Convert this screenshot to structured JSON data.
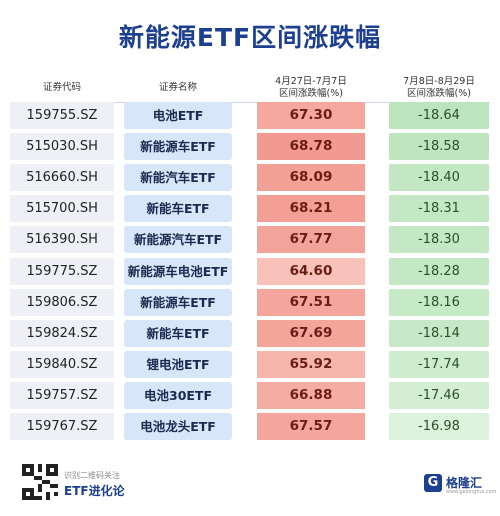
{
  "chart_data": {
    "type": "table",
    "title": "新能源ETF区间涨跌幅",
    "columns": [
      "证券代码",
      "证券名称",
      "4月27日-7月7日区间涨跌幅(%)",
      "7月8日-8月29日区间涨跌幅(%)"
    ],
    "header": {
      "code": "证券代码",
      "name": "证券名称",
      "period1_line1": "4月27日-7月7日",
      "period1_line2": "区间涨跌幅(%)",
      "period2_line1": "7月8日-8月29日",
      "period2_line2": "区间涨跌幅(%)"
    },
    "rows": [
      {
        "code": "159755.SZ",
        "name": "电池ETF",
        "p1": "67.30",
        "p2": "-18.64"
      },
      {
        "code": "515030.SH",
        "name": "新能源车ETF",
        "p1": "68.78",
        "p2": "-18.58"
      },
      {
        "code": "516660.SH",
        "name": "新能汽车ETF",
        "p1": "68.09",
        "p2": "-18.40"
      },
      {
        "code": "515700.SH",
        "name": "新能车ETF",
        "p1": "68.21",
        "p2": "-18.31"
      },
      {
        "code": "516390.SH",
        "name": "新能源汽车ETF",
        "p1": "67.77",
        "p2": "-18.30"
      },
      {
        "code": "159775.SZ",
        "name": "新能源车电池ETF",
        "p1": "64.60",
        "p2": "-18.28"
      },
      {
        "code": "159806.SZ",
        "name": "新能源车ETF",
        "p1": "67.51",
        "p2": "-18.16"
      },
      {
        "code": "159824.SZ",
        "name": "新能车ETF",
        "p1": "67.69",
        "p2": "-18.14"
      },
      {
        "code": "159840.SZ",
        "name": "锂电池ETF",
        "p1": "65.92",
        "p2": "-17.74"
      },
      {
        "code": "159757.SZ",
        "name": "电池30ETF",
        "p1": "66.88",
        "p2": "-17.46"
      },
      {
        "code": "159767.SZ",
        "name": "电池龙头ETF",
        "p1": "67.57",
        "p2": "-16.98"
      }
    ]
  },
  "footer": {
    "qr_hint": "识别二维码关注",
    "brand": "ETF进化论",
    "logo_mark": "G",
    "logo_name": "格隆汇",
    "logo_site": "www.gelonghui.com"
  },
  "colors": {
    "title": "#1d3f8f",
    "up_strong": "#f29a8f",
    "up_light": "#fbd8d2",
    "down_strong": "#bde5bd",
    "down_light": "#e8f6e8"
  }
}
